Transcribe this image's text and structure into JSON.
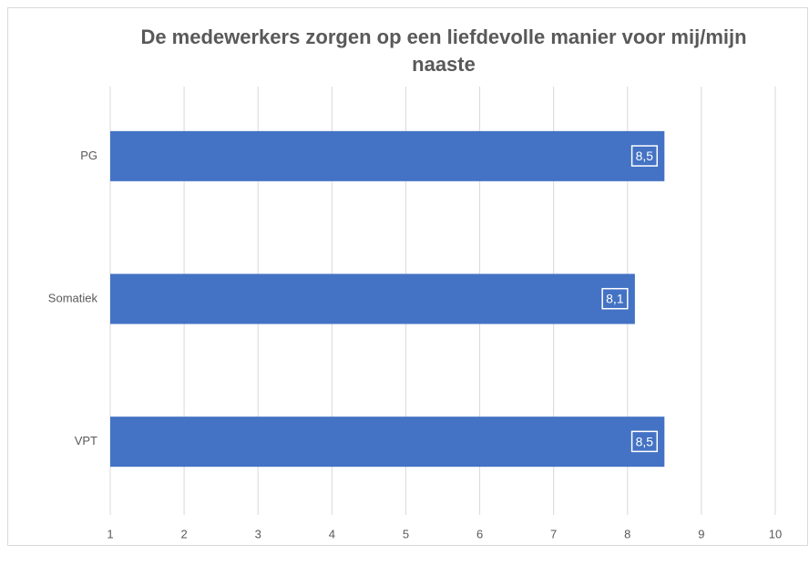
{
  "chart_data": {
    "type": "bar",
    "orientation": "horizontal",
    "title": "De medewerkers zorgen op een liefdevolle manier voor mij/mijn naaste",
    "categories": [
      "PG",
      "Somatiek",
      "VPT"
    ],
    "values": [
      8.5,
      8.1,
      8.5
    ],
    "value_labels": [
      "8,5",
      "8,1",
      "8,5"
    ],
    "color": "#4472c4",
    "xlim": [
      1,
      10
    ],
    "xticks": [
      1,
      2,
      3,
      4,
      5,
      6,
      7,
      8,
      9,
      10
    ],
    "grid": true
  }
}
